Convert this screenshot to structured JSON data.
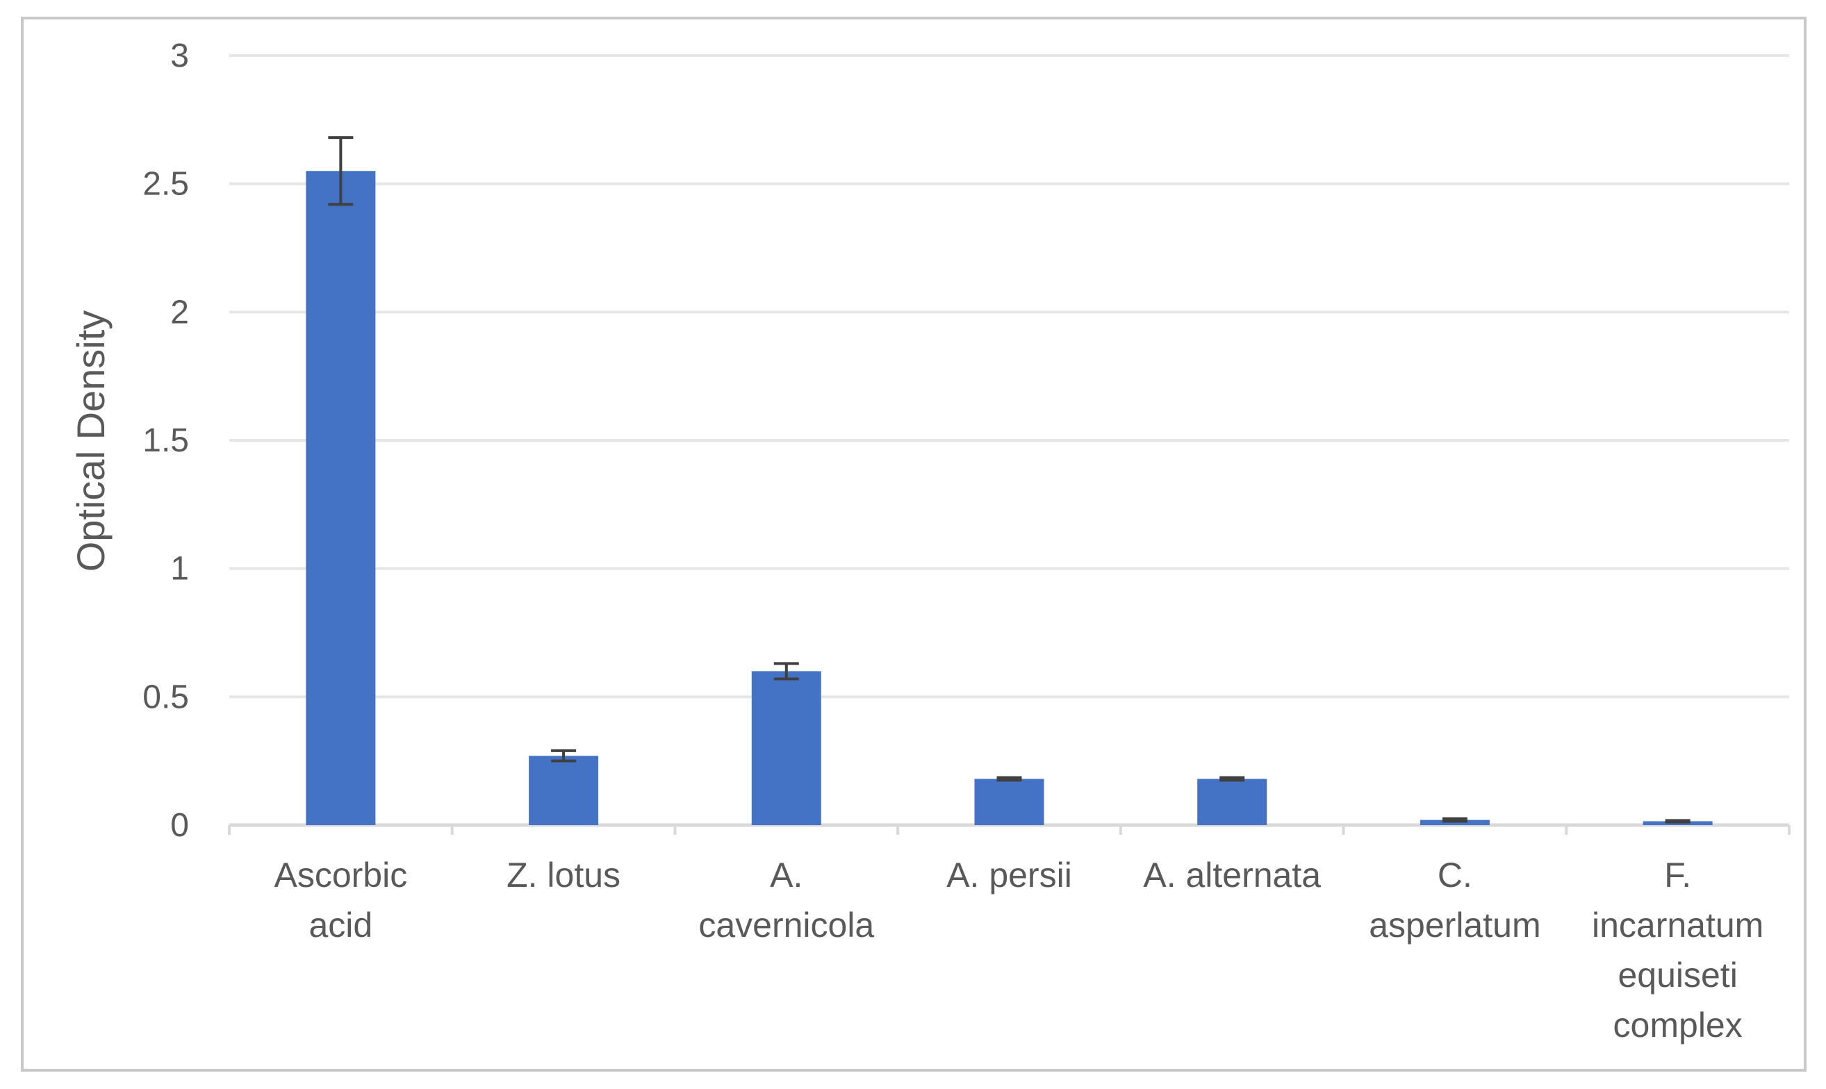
{
  "chart_data": {
    "type": "bar",
    "title": "",
    "xlabel": "",
    "ylabel": "Optical Density",
    "ylim": [
      0,
      3
    ],
    "yticks": [
      "0",
      "0.5",
      "1",
      "1.5",
      "2",
      "2.5",
      "3"
    ],
    "grid": true,
    "legend": "none",
    "categories": [
      [
        "Ascorbic",
        "acid"
      ],
      [
        "Z. lotus"
      ],
      [
        "A.",
        "cavernicola"
      ],
      [
        "A. persii"
      ],
      [
        "A. alternata"
      ],
      [
        "C.",
        "asperlatum"
      ],
      [
        "F.",
        "incarnatum",
        "equiseti",
        "complex"
      ]
    ],
    "series": [
      {
        "values": [
          2.55,
          0.27,
          0.6,
          0.18,
          0.18,
          0.02,
          0.015
        ],
        "errors": [
          0.13,
          0.02,
          0.03,
          0.005,
          0.005,
          0.005,
          0.003
        ],
        "color": "#4472c4"
      }
    ]
  }
}
